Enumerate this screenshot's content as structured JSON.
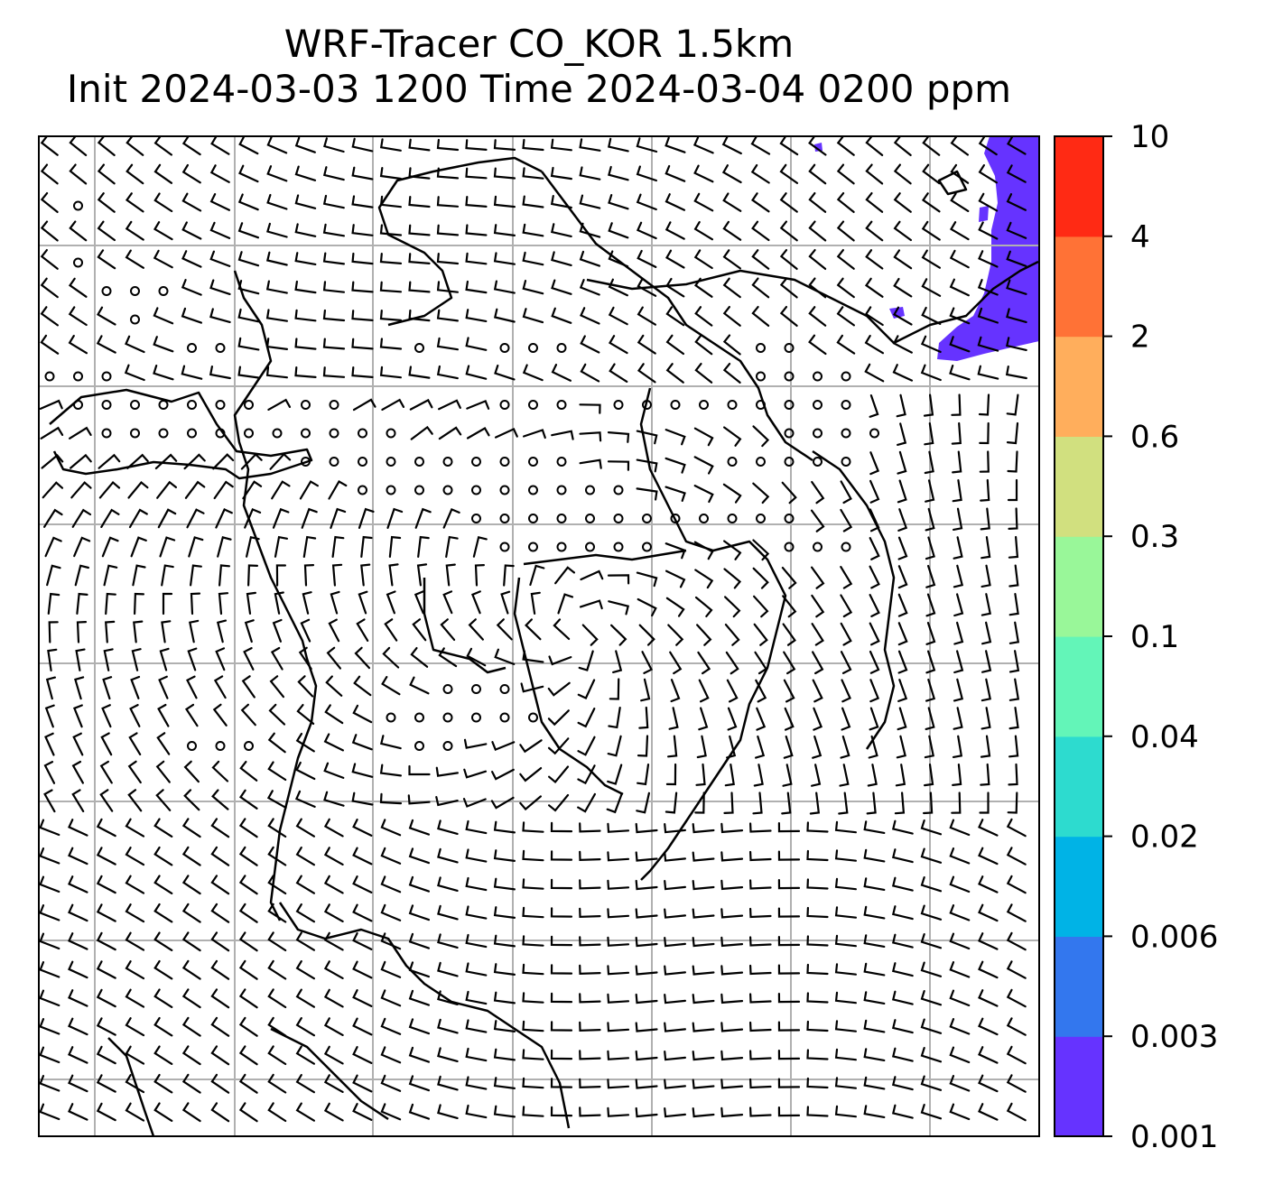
{
  "title_line1": "WRF-Tracer CO_KOR 1.5km",
  "title_line2": "Init 2024-03-03 1200 Time 2024-03-04 0200 ppm",
  "chart_data": {
    "type": "heatmap",
    "description_source": "filled contour of tracer concentration with wind barbs over a map",
    "title": "WRF-Tracer CO_KOR 1.5km",
    "subtitle": "Init 2024-03-03 1200 Time 2024-03-04 0200 ppm",
    "units": "ppm",
    "colorbar": {
      "levels": [
        "0.001",
        "0.003",
        "0.006",
        "0.02",
        "0.04",
        "0.1",
        "0.3",
        "0.6",
        "2",
        "4",
        "10"
      ],
      "colors": [
        "#6633ff",
        "#3377ee",
        "#00b3e6",
        "#2ddbcf",
        "#63f5b8",
        "#99f799",
        "#d1e07f",
        "#ffae5c",
        "#ff7236",
        "#ff2a14"
      ]
    },
    "grid": true,
    "filled_region": {
      "level_range": [
        "0.001",
        "0.003"
      ],
      "location": "top-right"
    }
  }
}
